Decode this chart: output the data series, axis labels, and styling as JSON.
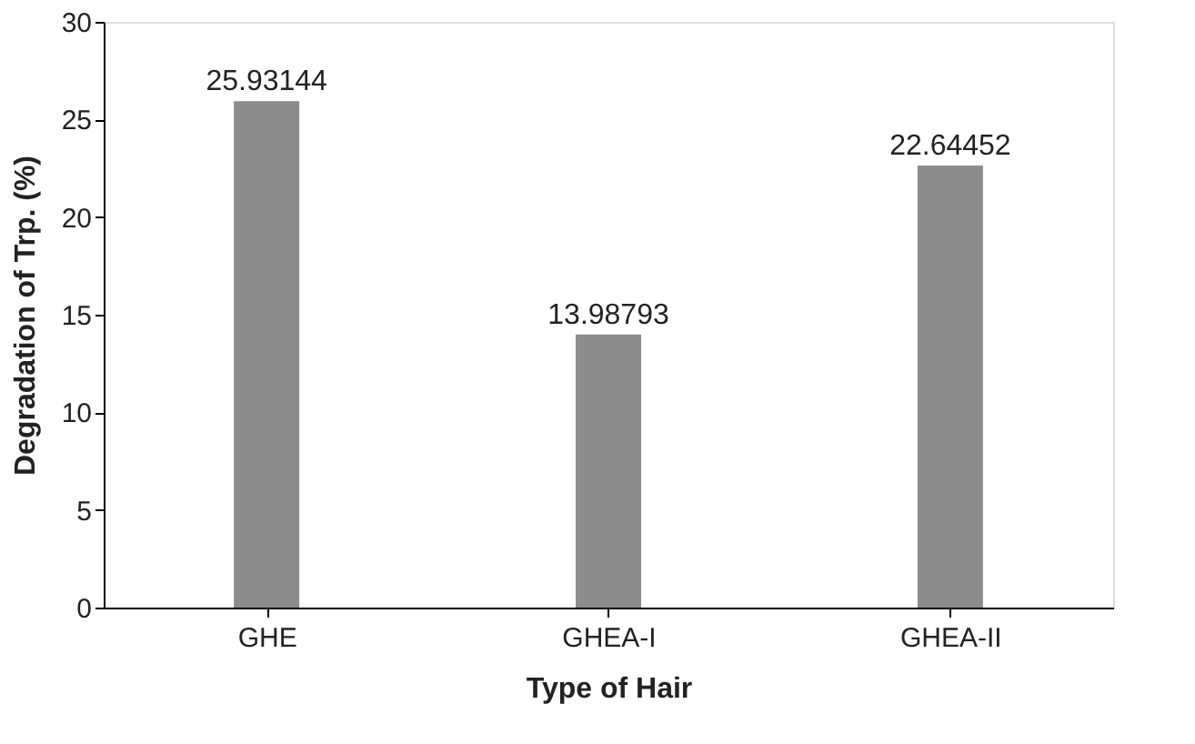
{
  "chart_data": {
    "type": "bar",
    "xlabel": "Type of Hair",
    "ylabel": "Degradation of Trp. (%)",
    "categories": [
      "GHE",
      "GHEA-I",
      "GHEA-II"
    ],
    "values": [
      25.93144,
      13.98793,
      22.64452
    ],
    "color": "#8c8c8c",
    "ylim": [
      0,
      30
    ],
    "yticks": [
      0,
      5,
      10,
      15,
      20,
      25,
      30
    ],
    "data_labels": true,
    "grid": false
  }
}
